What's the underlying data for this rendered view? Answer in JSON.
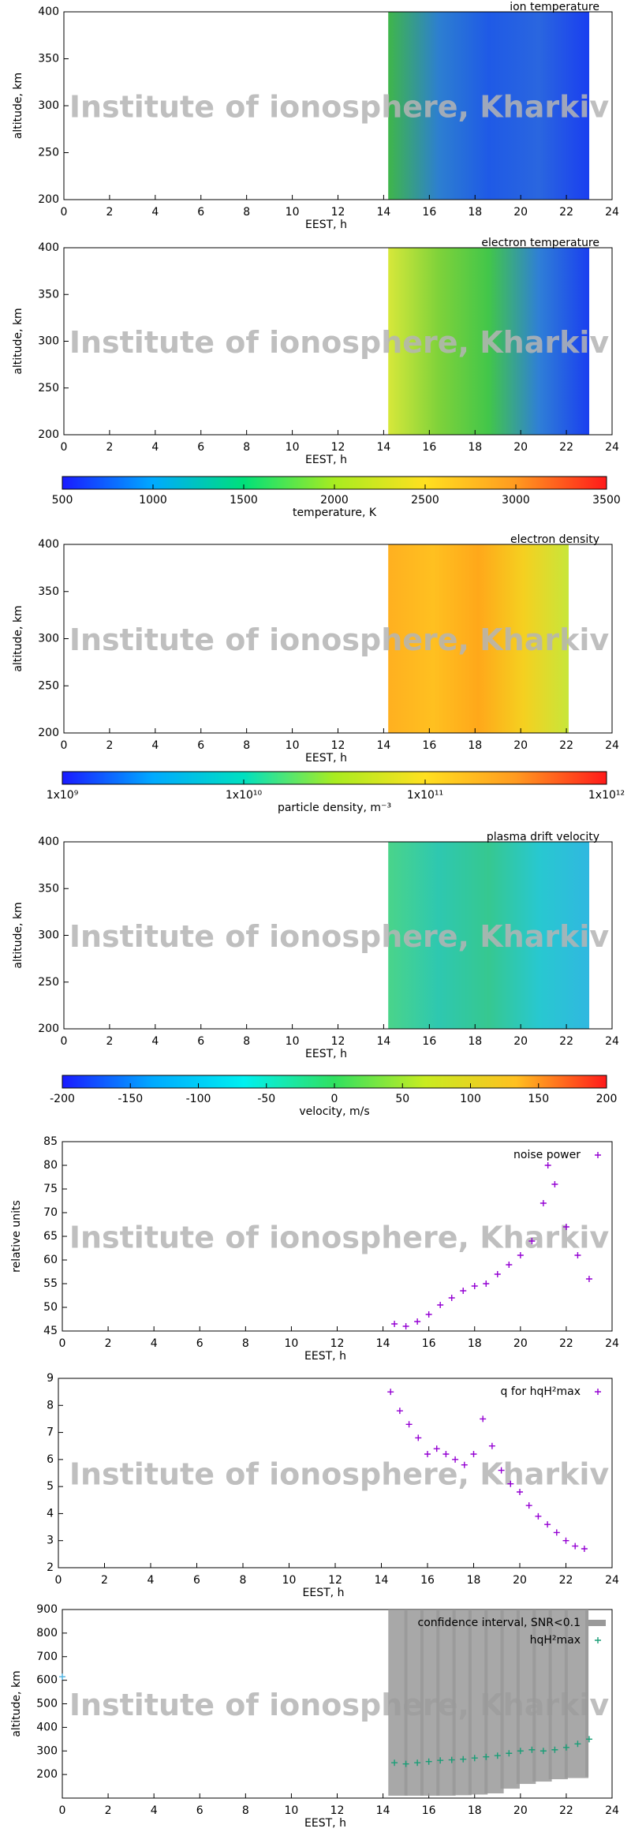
{
  "watermark": "Institute of ionosphere, Kharkiv",
  "chart_data": [
    {
      "type": "heatmap",
      "title": "ion temperature",
      "xlabel": "EEST, h",
      "ylabel": "altitude, km",
      "xlim": [
        0,
        24
      ],
      "xticks": [
        0,
        2,
        4,
        6,
        8,
        10,
        12,
        14,
        16,
        18,
        20,
        22,
        24
      ],
      "ylim": [
        200,
        400
      ],
      "yticks": [
        200,
        250,
        300,
        350,
        400
      ],
      "x": [
        14.2,
        23
      ],
      "colors": [
        "#3fb64a",
        "#2d7fd0",
        "#1f5ae6",
        "#2a66df",
        "#1a3ff0"
      ]
    },
    {
      "type": "heatmap",
      "title": "electron temperature",
      "xlabel": "EEST, h",
      "ylabel": "altitude, km",
      "xlim": [
        0,
        24
      ],
      "xticks": [
        0,
        2,
        4,
        6,
        8,
        10,
        12,
        14,
        16,
        18,
        20,
        22,
        24
      ],
      "ylim": [
        200,
        400
      ],
      "yticks": [
        200,
        250,
        300,
        350,
        400
      ],
      "x": [
        14.2,
        23
      ],
      "colors": [
        "#d7e83a",
        "#7fd23a",
        "#42c64a",
        "#2f7fd6",
        "#1a3ff0"
      ],
      "colorbar": {
        "label": "temperature, K",
        "lim": [
          500,
          3500
        ],
        "ticks": [
          500,
          1000,
          1500,
          2000,
          2500,
          3000,
          3500
        ],
        "colors": [
          "#1a1aff",
          "#00aaff",
          "#00e07a",
          "#a8ec20",
          "#ffe020",
          "#ff9a20",
          "#ff1a1a"
        ]
      }
    },
    {
      "type": "heatmap",
      "title": "electron density",
      "xlabel": "EEST, h",
      "ylabel": "altitude, km",
      "xlim": [
        0,
        24
      ],
      "xticks": [
        0,
        2,
        4,
        6,
        8,
        10,
        12,
        14,
        16,
        18,
        20,
        22,
        24
      ],
      "ylim": [
        200,
        400
      ],
      "yticks": [
        200,
        250,
        300,
        350,
        400
      ],
      "x": [
        14.2,
        22.1
      ],
      "colors": [
        "#ffb020",
        "#ffc020",
        "#ffa81a",
        "#f5d020",
        "#c8e63a"
      ],
      "colorbar": {
        "label": "particle density, m⁻³",
        "lim": [
          9,
          12
        ],
        "ticks": [
          {
            "value": 9,
            "label": "1x10⁹"
          },
          {
            "value": 10,
            "label": "1x10¹⁰"
          },
          {
            "value": 11,
            "label": "1x10¹¹"
          },
          {
            "value": 12,
            "label": "1x10¹²"
          }
        ],
        "colors": [
          "#1a1aff",
          "#00aaff",
          "#00e0c0",
          "#a8ec20",
          "#ffe020",
          "#ff9a20",
          "#ff1a1a"
        ]
      }
    },
    {
      "type": "heatmap",
      "title": "plasma drift velocity",
      "xlabel": "EEST, h",
      "ylabel": "altitude, km",
      "xlim": [
        0,
        24
      ],
      "xticks": [
        0,
        2,
        4,
        6,
        8,
        10,
        12,
        14,
        16,
        18,
        20,
        22,
        24
      ],
      "ylim": [
        200,
        400
      ],
      "yticks": [
        200,
        250,
        300,
        350,
        400
      ],
      "x": [
        14.2,
        23
      ],
      "colors": [
        "#4ad48a",
        "#2ec8b0",
        "#36c890",
        "#28c8d0",
        "#30b8e0"
      ],
      "colorbar": {
        "label": "velocity, m/s",
        "lim": [
          -200,
          200
        ],
        "ticks": [
          -200,
          -150,
          -100,
          -50,
          0,
          50,
          100,
          150,
          200
        ],
        "colors": [
          "#1a1aff",
          "#00aaff",
          "#00f0f0",
          "#30e060",
          "#c8ec20",
          "#ffc020",
          "#ff1a1a"
        ]
      }
    },
    {
      "type": "scatter",
      "xlabel": "EEST, h",
      "ylabel": "relative units",
      "xlim": [
        0,
        24
      ],
      "xticks": [
        0,
        2,
        4,
        6,
        8,
        10,
        12,
        14,
        16,
        18,
        20,
        22,
        24
      ],
      "ylim": [
        45,
        85
      ],
      "yticks": [
        45,
        50,
        55,
        60,
        65,
        70,
        75,
        80,
        85
      ],
      "series": [
        {
          "name": "noise power",
          "color": "#9400d3",
          "x": [
            14.5,
            15,
            15.5,
            16,
            16.5,
            17,
            17.5,
            18,
            18.5,
            19,
            19.5,
            20,
            20.5,
            21,
            21.2,
            21.5,
            22,
            22.5,
            23
          ],
          "values": [
            46.5,
            46,
            47,
            48.5,
            50.5,
            52,
            53.5,
            54.5,
            55,
            57,
            59,
            61,
            64,
            72,
            80,
            76,
            67,
            61,
            56
          ]
        }
      ]
    },
    {
      "type": "scatter",
      "xlabel": "EEST, h",
      "xlim": [
        0,
        24
      ],
      "xticks": [
        0,
        2,
        4,
        6,
        8,
        10,
        12,
        14,
        16,
        18,
        20,
        22,
        24
      ],
      "ylim": [
        2,
        9
      ],
      "yticks": [
        2,
        3,
        4,
        5,
        6,
        7,
        8,
        9
      ],
      "series": [
        {
          "name": "q for hqH²max",
          "color": "#9400d3",
          "x": [
            14.4,
            14.8,
            15.2,
            15.6,
            16,
            16.4,
            16.8,
            17.2,
            17.6,
            18,
            18.4,
            18.8,
            19.2,
            19.6,
            20,
            20.4,
            20.8,
            21.2,
            21.6,
            22,
            22.4,
            22.8
          ],
          "values": [
            8.5,
            7.8,
            7.3,
            6.8,
            6.2,
            6.4,
            6.2,
            6,
            5.8,
            6.2,
            7.5,
            6.5,
            5.6,
            5.1,
            4.8,
            4.3,
            3.9,
            3.6,
            3.3,
            3.0,
            2.8,
            2.7
          ]
        }
      ]
    },
    {
      "type": "scatter",
      "xlabel": "EEST, h",
      "ylabel": "altitude, km",
      "xlim": [
        0,
        24
      ],
      "xticks": [
        0,
        2,
        4,
        6,
        8,
        10,
        12,
        14,
        16,
        18,
        20,
        22,
        24
      ],
      "ylim": [
        100,
        900
      ],
      "yticks": [
        200,
        300,
        400,
        500,
        600,
        700,
        800,
        900
      ],
      "series": [
        {
          "name": "confidence interval, SNR<0.1",
          "color": "#999999",
          "kind": "interval",
          "x": [
            14.3,
            15,
            15.7,
            16.4,
            17.1,
            17.8,
            18.5,
            19.2,
            19.9,
            20.6,
            21.3,
            22,
            22.9
          ],
          "lower": [
            110,
            110,
            110,
            110,
            112,
            115,
            120,
            140,
            160,
            170,
            180,
            185,
            190
          ],
          "values": [
            900,
            900,
            900,
            900,
            900,
            900,
            900,
            900,
            900,
            900,
            900,
            900,
            900
          ]
        },
        {
          "name": "hqH²max",
          "color": "#1a9e77",
          "x": [
            14.5,
            15,
            15.5,
            16,
            16.5,
            17,
            17.5,
            18,
            18.5,
            19,
            19.5,
            20,
            20.5,
            21,
            21.5,
            22,
            22.5,
            23
          ],
          "values": [
            250,
            245,
            250,
            255,
            260,
            262,
            265,
            270,
            275,
            280,
            290,
            300,
            305,
            300,
            305,
            315,
            330,
            350
          ]
        },
        {
          "name": null,
          "color": "#4ab0e0",
          "x": [
            0
          ],
          "values": [
            615
          ]
        }
      ]
    }
  ]
}
